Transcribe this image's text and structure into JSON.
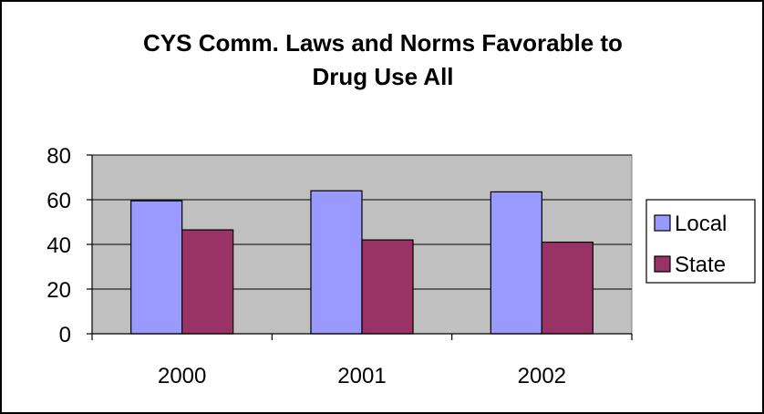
{
  "chart_data": {
    "type": "bar",
    "title_lines": [
      "CYS Comm. Laws and Norms Favorable to",
      "Drug Use All"
    ],
    "categories": [
      "2000",
      "2001",
      "2002"
    ],
    "series": [
      {
        "name": "Local",
        "values": [
          59.5,
          64,
          63.5
        ],
        "color": "#9999ff"
      },
      {
        "name": "State",
        "values": [
          46.5,
          42,
          41
        ],
        "color": "#993366"
      }
    ],
    "ylim": [
      0,
      80
    ],
    "yticks": [
      0,
      20,
      40,
      60,
      80
    ],
    "grid": true,
    "plot_background": "#c0c0c0",
    "legend_position": "right"
  }
}
